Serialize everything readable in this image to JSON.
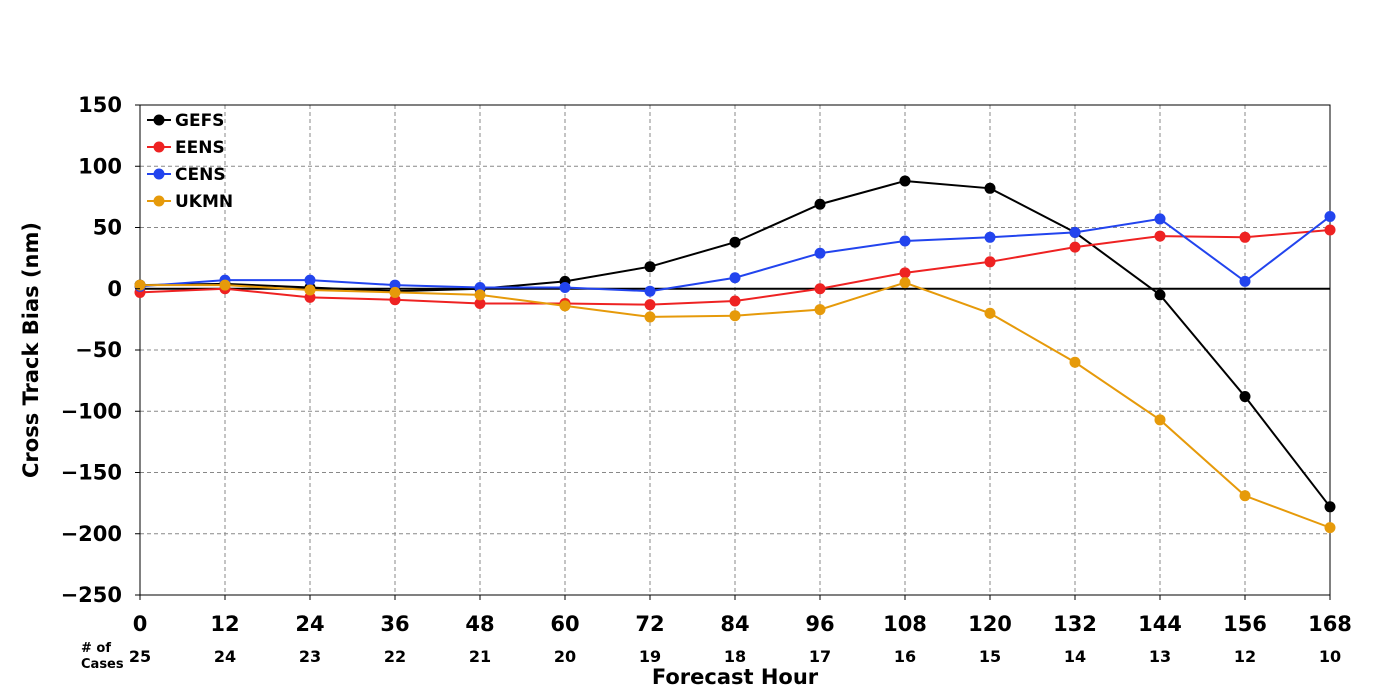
{
  "chart_data": {
    "type": "line",
    "xlabel": "Forecast Hour",
    "ylabel": "Cross Track Bias (nm)",
    "x": [
      0,
      12,
      24,
      36,
      48,
      60,
      72,
      84,
      96,
      108,
      120,
      132,
      144,
      156,
      168
    ],
    "xticks": [
      "0",
      "12",
      "24",
      "36",
      "48",
      "60",
      "72",
      "84",
      "96",
      "108",
      "120",
      "132",
      "144",
      "156",
      "168"
    ],
    "yticks": [
      150,
      100,
      50,
      0,
      -50,
      -100,
      -150,
      -200,
      -250
    ],
    "ytick_labels": [
      "150",
      "100",
      "50",
      "0",
      "−50",
      "−100",
      "−150",
      "−200",
      "−250"
    ],
    "xlim": [
      0,
      168
    ],
    "ylim": [
      -250,
      150
    ],
    "grid": true,
    "legend_position": "top-left",
    "cases_title": [
      "# of",
      "Cases"
    ],
    "cases": [
      "25",
      "24",
      "23",
      "22",
      "21",
      "20",
      "19",
      "18",
      "17",
      "16",
      "15",
      "14",
      "13",
      "12",
      "10"
    ],
    "series": [
      {
        "name": "GEFS",
        "color": "#000000",
        "values": [
          3,
          4,
          1,
          -2,
          0,
          6,
          18,
          38,
          69,
          88,
          82,
          46,
          -5,
          -88,
          -178
        ]
      },
      {
        "name": "EENS",
        "color": "#ee2222",
        "values": [
          -3,
          0,
          -7,
          -9,
          -12,
          -12,
          -13,
          -10,
          0,
          13,
          22,
          34,
          43,
          42,
          48
        ]
      },
      {
        "name": "CENS",
        "color": "#2244ee",
        "values": [
          2,
          7,
          7,
          3,
          1,
          1,
          -2,
          9,
          29,
          39,
          42,
          46,
          57,
          6,
          59
        ]
      },
      {
        "name": "UKMN",
        "color": "#e69a0a",
        "values": [
          3,
          3,
          -1,
          -3,
          -5,
          -14,
          -23,
          -22,
          -17,
          5,
          -20,
          -60,
          -107,
          -169,
          -195
        ]
      }
    ]
  }
}
